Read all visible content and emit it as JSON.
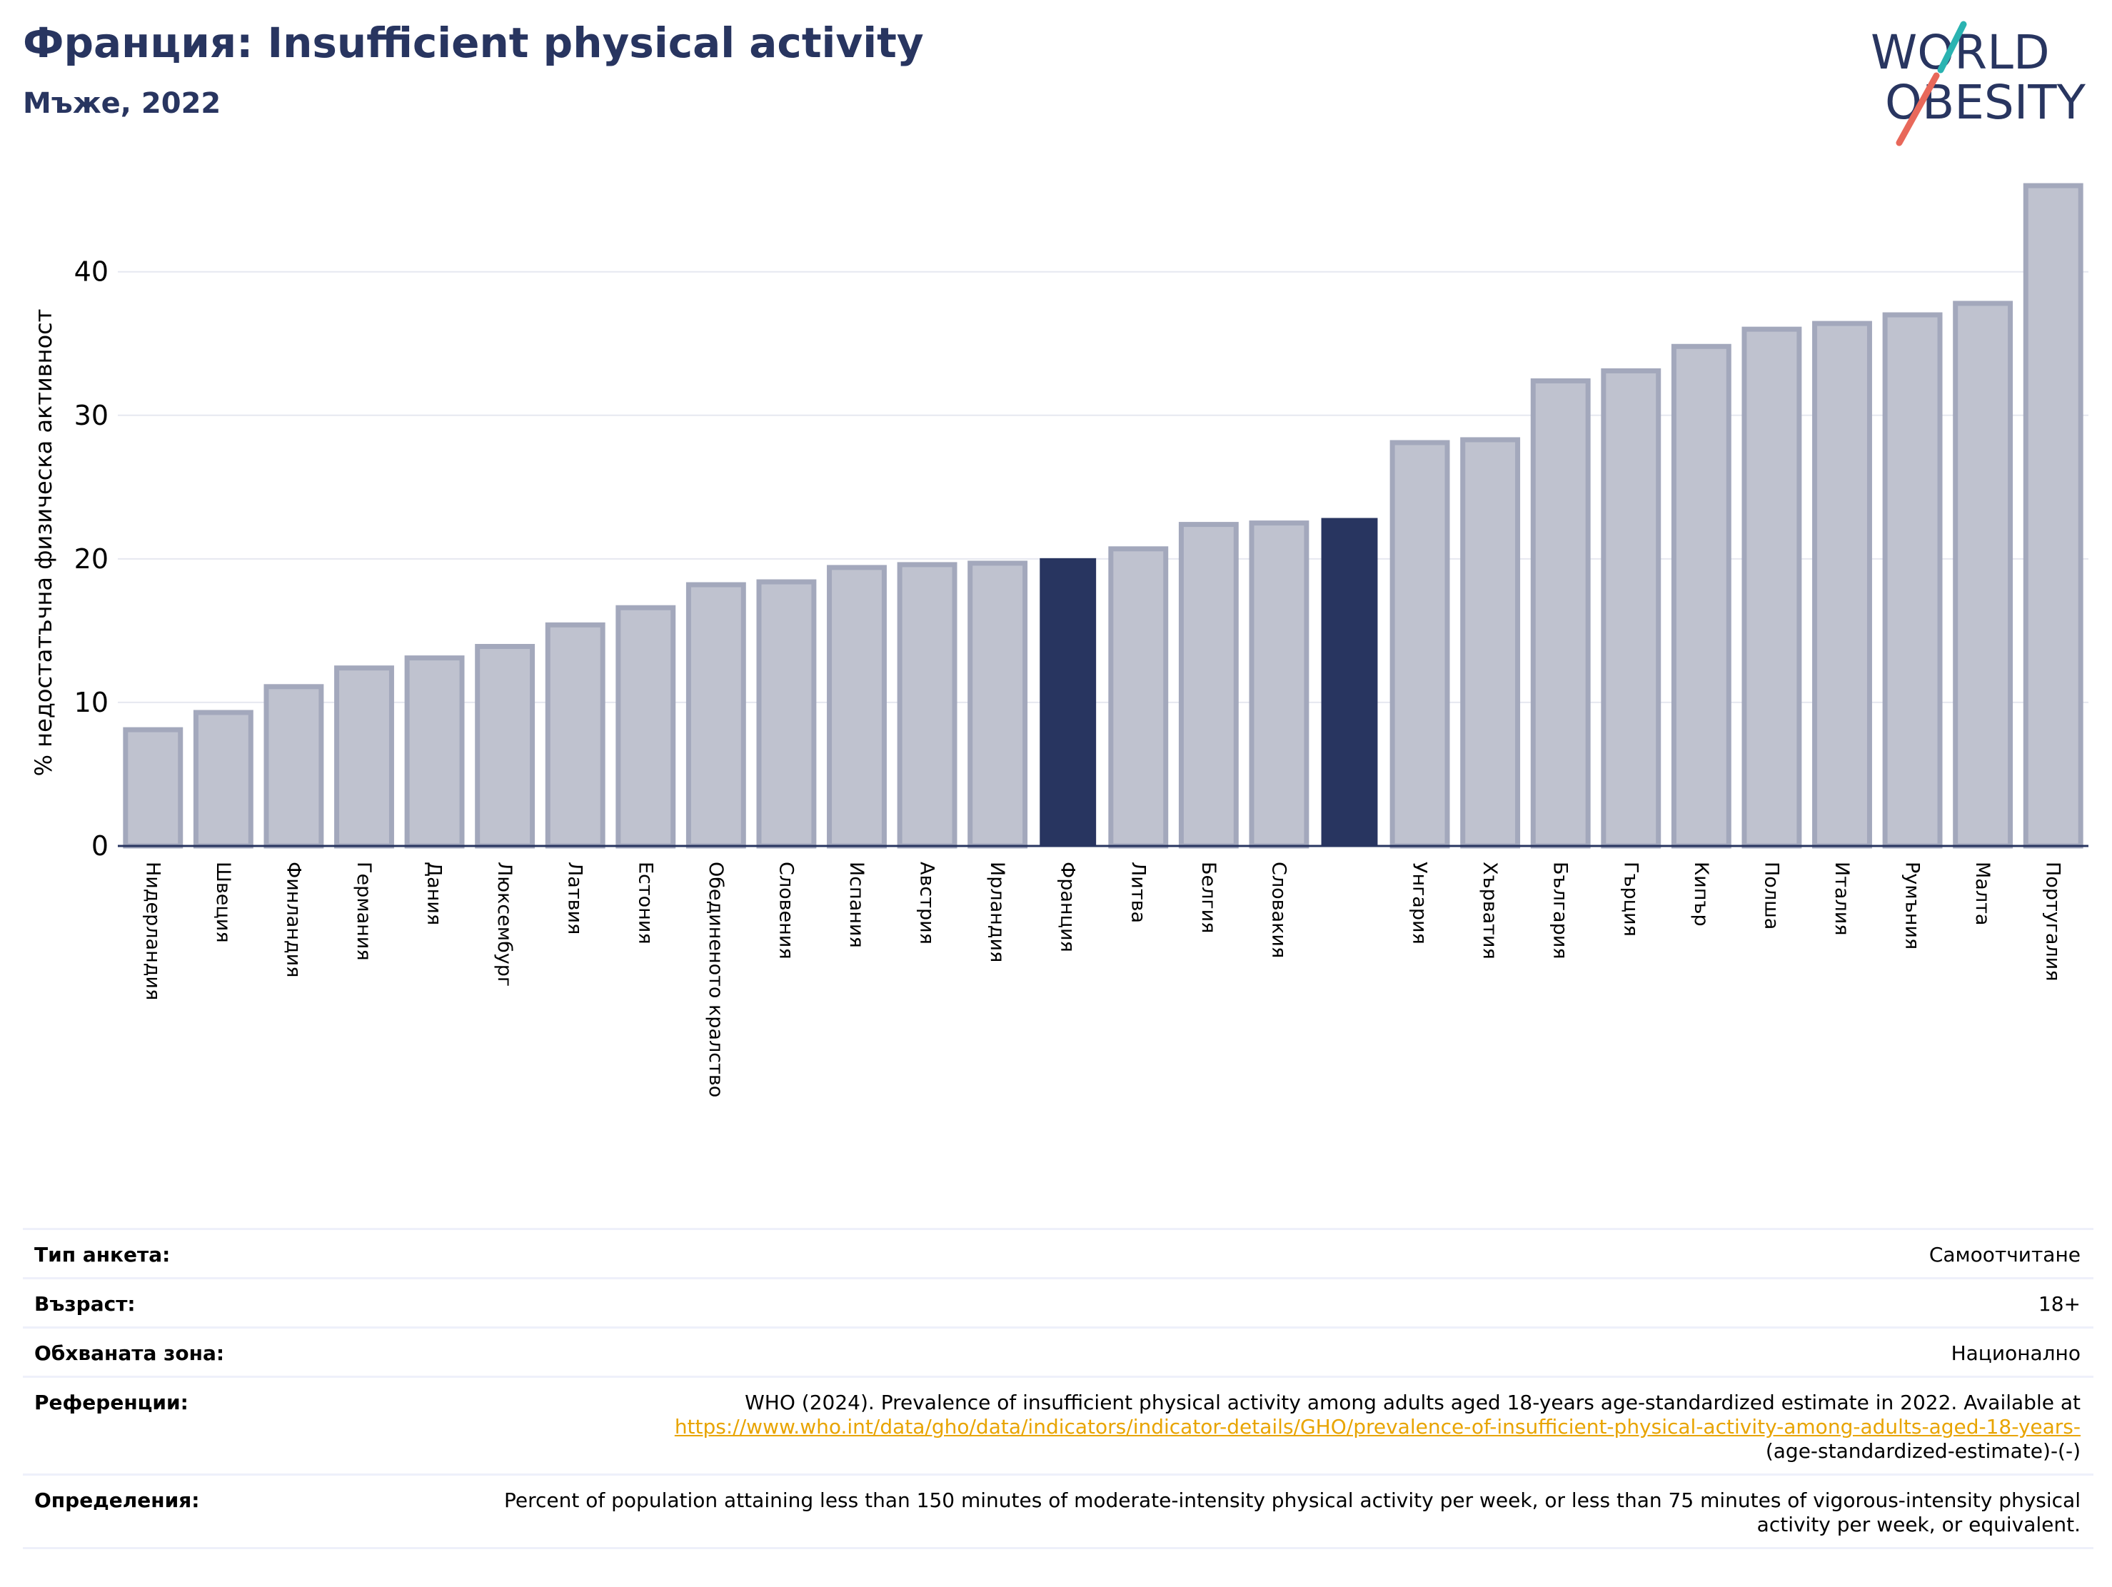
{
  "header": {
    "title": "Франция: Insufficient physical activity",
    "subtitle": "Мъже, 2022"
  },
  "logo": {
    "line1": "WORLD",
    "line2": "OBESITY"
  },
  "colors": {
    "highlight": "#283560",
    "bar": "#bfc2cf",
    "bar_edge": "#a3a8bc",
    "title": "#283560",
    "link": "#e8a400"
  },
  "chart_data": {
    "type": "bar",
    "ylabel": "% недостатъчна физическа активност",
    "ylim": [
      0,
      46.5
    ],
    "yticks": [
      0,
      10,
      20,
      30,
      40
    ],
    "grid": true,
    "categories": [
      "Нидерландия",
      "Швеция",
      "Финландия",
      "Германия",
      "Дания",
      "Люксембург",
      "Латвия",
      "Естония",
      "Обединеното кралство",
      "Словения",
      "Испания",
      "Австрия",
      "Ирландия",
      "Франция",
      "Литва",
      "Белгия",
      "Словакия",
      "",
      "Унгария",
      "Хърватия",
      "България",
      "Гърция",
      "Кипър",
      "Полша",
      "Италия",
      "Румъния",
      "Малта",
      "Португалия"
    ],
    "values": [
      8.1,
      9.3,
      11.1,
      12.4,
      13.1,
      13.9,
      15.4,
      16.6,
      18.2,
      18.4,
      19.4,
      19.6,
      19.7,
      20.0,
      20.7,
      22.4,
      22.5,
      22.8,
      28.1,
      28.3,
      32.4,
      33.1,
      34.8,
      36.0,
      36.4,
      37.0,
      37.8,
      46.0
    ],
    "highlighted": [
      "Франция",
      ""
    ]
  },
  "info": [
    {
      "label": "Тип анкета:",
      "value": "Самоотчитане"
    },
    {
      "label": "Възраст:",
      "value": "18+"
    },
    {
      "label": "Обхваната зона:",
      "value": "Национално"
    },
    {
      "label": "Референции:",
      "value": "WHO (2024). Prevalence of insufficient physical activity among adults aged 18-years age-standardized estimate in 2022. Available at",
      "link": "https://www.who.int/data/gho/data/indicators/indicator-details/GHO/prevalence-of-insufficient-physical-activity-among-adults-aged-18-years-",
      "value_after": "(age-standardized-estimate)-(-)"
    },
    {
      "label": "Определения:",
      "value": "Percent of population attaining less than 150 minutes of moderate-intensity physical activity per week, or less than 75 minutes of vigorous-intensity physical activity per week, or equivalent."
    }
  ]
}
